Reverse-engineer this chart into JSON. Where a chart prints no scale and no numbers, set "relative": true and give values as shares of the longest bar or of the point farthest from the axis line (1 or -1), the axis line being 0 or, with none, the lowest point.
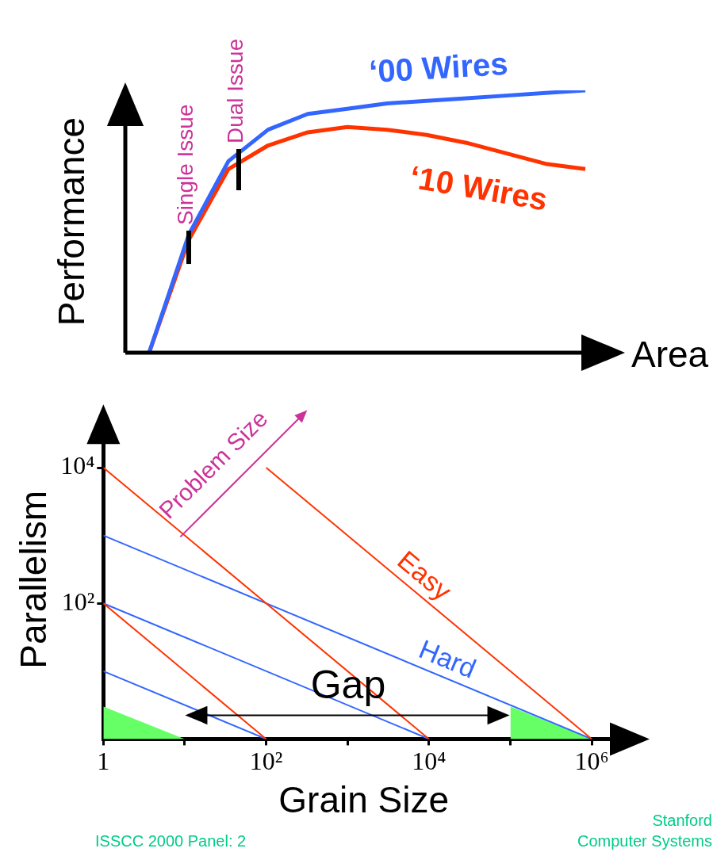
{
  "chart_data": [
    {
      "type": "line",
      "relative": true,
      "xlabel": "Area",
      "ylabel": "Performance",
      "categories": [
        null,
        null,
        null,
        null,
        null,
        null,
        null,
        null,
        null,
        null,
        null,
        null
      ],
      "series": [
        {
          "name": "‘00 Wires",
          "color": "#3366ff",
          "values": [
            0,
            0.45,
            0.73,
            0.85,
            0.91,
            0.93,
            0.95,
            0.96,
            0.97,
            0.98,
            0.99,
            1
          ]
        },
        {
          "name": "‘10 Wires",
          "color": "#ff3300",
          "values": [
            0,
            0.43,
            0.7,
            0.79,
            0.84,
            0.86,
            0.85,
            0.83,
            0.8,
            0.76,
            0.72,
            0.7
          ]
        }
      ],
      "annotations": [
        "Single Issue",
        "Dual Issue"
      ]
    },
    {
      "type": "line",
      "xlabel": "Grain Size",
      "ylabel": "Parallelism",
      "log": "xy",
      "xlim": [
        1,
        2500000
      ],
      "ylim": [
        1,
        50000
      ],
      "xticks": [
        1,
        {
          "value": 10,
          "label": null
        },
        {
          "value": 100,
          "label": "10²"
        },
        {
          "value": 1000,
          "label": null
        },
        {
          "value": 10000,
          "label": "10⁴"
        },
        {
          "value": 100000,
          "label": null
        },
        {
          "value": 1000000,
          "label": "10⁶"
        }
      ],
      "yticks": [
        {
          "value": 100,
          "label": "10²"
        },
        {
          "value": 10000,
          "label": "10⁴"
        }
      ],
      "series": [
        {
          "color": "#ff3300",
          "x": [
            1,
            100
          ],
          "values": [
            100,
            1
          ]
        },
        {
          "color": "#ff3300",
          "x": [
            1,
            10000
          ],
          "values": [
            10000,
            1
          ]
        },
        {
          "name": "Easy",
          "color": "#ff3300",
          "x": [
            100,
            1000000
          ],
          "values": [
            10000,
            1
          ]
        },
        {
          "color": "#3366ff",
          "x": [
            1,
            100
          ],
          "values": [
            10,
            1
          ]
        },
        {
          "color": "#3366ff",
          "x": [
            1,
            10000
          ],
          "values": [
            100,
            1
          ]
        },
        {
          "name": "Hard",
          "color": "#3366ff",
          "x": [
            1,
            1000000
          ],
          "values": [
            1000,
            1
          ]
        },
        {
          "type": "area",
          "color": "#66ff66",
          "x": [
            1,
            10
          ],
          "values": [
            3,
            1
          ]
        },
        {
          "type": "area",
          "color": "#66ff66",
          "x": [
            100000,
            1000000
          ],
          "values": [
            3,
            1
          ]
        }
      ],
      "annotations": [
        "Problem Size",
        "Gap",
        "ISSCC 2000 Panel: 2",
        "Stanford",
        "Computer Systems"
      ]
    }
  ]
}
